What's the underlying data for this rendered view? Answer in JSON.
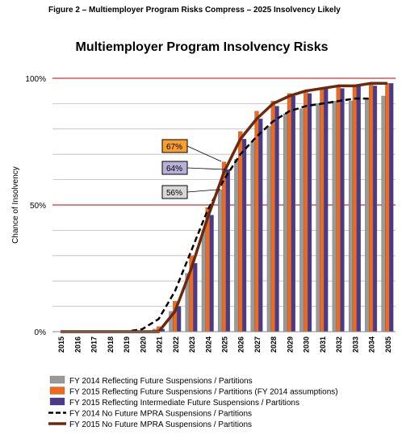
{
  "chart_data": {
    "type": "bar",
    "figure_title": "Figure 2 – Multiemployer Program Risks Compress – 2025 Insolvency Likely",
    "title": "Multiemployer Program Insolvency Risks",
    "y_label": "Chance of Insolvency",
    "categories": [
      "2015",
      "2016",
      "2017",
      "2018",
      "2019",
      "2020",
      "2021",
      "2022",
      "2023",
      "2024",
      "2025",
      "2026",
      "2027",
      "2028",
      "2029",
      "2030",
      "2031",
      "2032",
      "2033",
      "2034",
      "2035"
    ],
    "series": [
      {
        "name": "FY 2014 Reflecting Future Suspensions / Partitions",
        "kind": "bar",
        "color": "#9a9a9a",
        "values": [
          0,
          0,
          0,
          0,
          0,
          0,
          1,
          8,
          23,
          40,
          56,
          68,
          75,
          81,
          86,
          88,
          90,
          91,
          91,
          92,
          93
        ]
      },
      {
        "name": "FY 2015 Reflecting Future Suspensions / Partitions (FY 2014 assumptions)",
        "kind": "bar",
        "color": "#f06a1e",
        "values": [
          0,
          0,
          0,
          0,
          0,
          0,
          2,
          12,
          30,
          49,
          67,
          79,
          87,
          91,
          94,
          95,
          96,
          97,
          97,
          98,
          98
        ]
      },
      {
        "name": "FY 2015 Reflecting Intermediate Future Suspensions / Partitions",
        "kind": "bar",
        "color": "#4b3a8c",
        "values": [
          0,
          0,
          0,
          0,
          0,
          0,
          1,
          10,
          27,
          46,
          64,
          76,
          84,
          89,
          93,
          94,
          96,
          96,
          97,
          97,
          98
        ]
      },
      {
        "name": "FY 2014 No Future MPRA Suspensions / Partitions",
        "kind": "line",
        "dash": true,
        "color": "#000000",
        "values": [
          0,
          0,
          0,
          0,
          0,
          1,
          5,
          16,
          32,
          48,
          60,
          70,
          77,
          83,
          87,
          89,
          90,
          91,
          92,
          92,
          null
        ]
      },
      {
        "name": "FY 2015 No Future MPRA Suspensions / Partitions",
        "kind": "line",
        "dash": false,
        "color": "#6b2a0e",
        "values": [
          0,
          0,
          0,
          0,
          0,
          0,
          0,
          8,
          25,
          45,
          63,
          76,
          84,
          90,
          93,
          95,
          96,
          97,
          97,
          98,
          98
        ]
      }
    ],
    "annotations": [
      "67%",
      "64%",
      "56%"
    ],
    "ylim": [
      0,
      100
    ],
    "yticks": [
      {
        "value": 0,
        "label": "0%"
      },
      {
        "value": 50,
        "label": "50%"
      },
      {
        "value": 100,
        "label": "100%"
      }
    ],
    "minor_gridlines": [
      10,
      20,
      30,
      40,
      60,
      70,
      80,
      90
    ]
  }
}
